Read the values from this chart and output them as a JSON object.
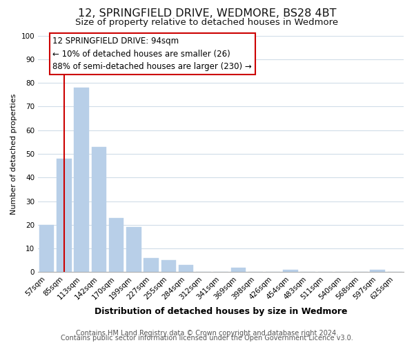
{
  "title": "12, SPRINGFIELD DRIVE, WEDMORE, BS28 4BT",
  "subtitle": "Size of property relative to detached houses in Wedmore",
  "xlabel": "Distribution of detached houses by size in Wedmore",
  "ylabel": "Number of detached properties",
  "bar_labels": [
    "57sqm",
    "85sqm",
    "113sqm",
    "142sqm",
    "170sqm",
    "199sqm",
    "227sqm",
    "255sqm",
    "284sqm",
    "312sqm",
    "341sqm",
    "369sqm",
    "398sqm",
    "426sqm",
    "454sqm",
    "483sqm",
    "511sqm",
    "540sqm",
    "568sqm",
    "597sqm",
    "625sqm"
  ],
  "bar_values": [
    20,
    48,
    78,
    53,
    23,
    19,
    6,
    5,
    3,
    0,
    0,
    2,
    0,
    0,
    1,
    0,
    0,
    0,
    0,
    1,
    0
  ],
  "bar_color": "#b8cfe8",
  "bar_edge_color": "#b8cfe8",
  "vline_x": 1,
  "vline_color": "#cc0000",
  "ylim": [
    0,
    100
  ],
  "yticks": [
    0,
    10,
    20,
    30,
    40,
    50,
    60,
    70,
    80,
    90,
    100
  ],
  "annotation_line1": "12 SPRINGFIELD DRIVE: 94sqm",
  "annotation_line2": "← 10% of detached houses are smaller (26)",
  "annotation_line3": "88% of semi-detached houses are larger (230) →",
  "footer_line1": "Contains HM Land Registry data © Crown copyright and database right 2024.",
  "footer_line2": "Contains public sector information licensed under the Open Government Licence v3.0.",
  "background_color": "#ffffff",
  "grid_color": "#d0dce8",
  "title_fontsize": 11.5,
  "subtitle_fontsize": 9.5,
  "xlabel_fontsize": 9,
  "ylabel_fontsize": 8,
  "tick_fontsize": 7.5,
  "annotation_fontsize": 8.5,
  "footer_fontsize": 7
}
